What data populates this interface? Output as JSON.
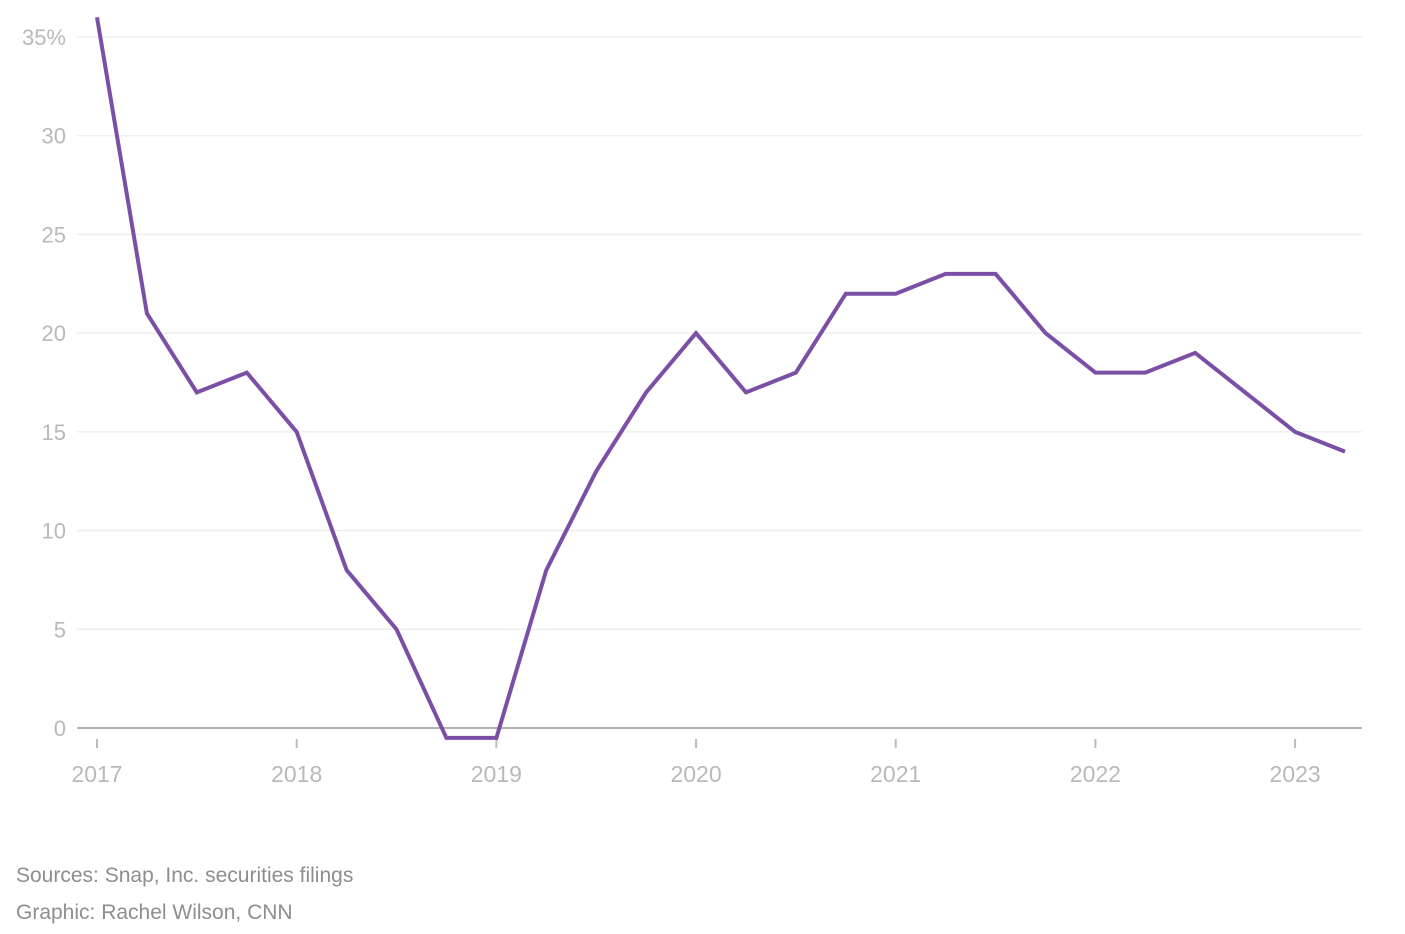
{
  "chart_data": {
    "type": "line",
    "title": "",
    "xlabel": "",
    "ylabel": "",
    "categories": [
      "Q1 2017",
      "Q2 2017",
      "Q3 2017",
      "Q4 2017",
      "Q1 2018",
      "Q2 2018",
      "Q3 2018",
      "Q4 2018",
      "Q1 2019",
      "Q2 2019",
      "Q3 2019",
      "Q4 2019",
      "Q1 2020",
      "Q2 2020",
      "Q3 2020",
      "Q4 2020",
      "Q1 2021",
      "Q2 2021",
      "Q3 2021",
      "Q4 2021",
      "Q1 2022",
      "Q2 2022",
      "Q3 2022",
      "Q4 2022",
      "Q1 2023",
      "Q2 2023"
    ],
    "values": [
      36,
      21,
      17,
      18,
      15,
      8,
      5,
      -0.5,
      -0.5,
      8,
      13,
      17,
      20,
      17,
      18,
      22,
      22,
      23,
      23,
      20,
      18,
      18,
      19,
      17,
      15,
      14
    ],
    "unit": "%",
    "ylim": [
      -1,
      36.5
    ],
    "y_ticks": [
      {
        "value": 35,
        "label": "35%"
      },
      {
        "value": 30,
        "label": "30"
      },
      {
        "value": 25,
        "label": "25"
      },
      {
        "value": 20,
        "label": "20"
      },
      {
        "value": 15,
        "label": "15"
      },
      {
        "value": 10,
        "label": "10"
      },
      {
        "value": 5,
        "label": "5"
      },
      {
        "value": 0,
        "label": "0"
      }
    ],
    "x_tick_labels": [
      {
        "index": 0,
        "label": "2017"
      },
      {
        "index": 4,
        "label": "2018"
      },
      {
        "index": 8,
        "label": "2019"
      },
      {
        "index": 12,
        "label": "2020"
      },
      {
        "index": 16,
        "label": "2021"
      },
      {
        "index": 20,
        "label": "2022"
      },
      {
        "index": 24,
        "label": "2023"
      }
    ],
    "grid": "horizontal",
    "legend": "none"
  },
  "colors": {
    "line": "#7B4FA5",
    "gridline": "#ececec",
    "zero_axis": "#b3b3b3",
    "tick_mark": "#bcbcbc",
    "axis_label": "#b9b9b9",
    "footer_text": "#8e8e8e",
    "background": "#ffffff"
  },
  "footer": {
    "sources": "Sources: Snap, Inc. securities filings",
    "credit": "Graphic: Rachel Wilson, CNN"
  }
}
